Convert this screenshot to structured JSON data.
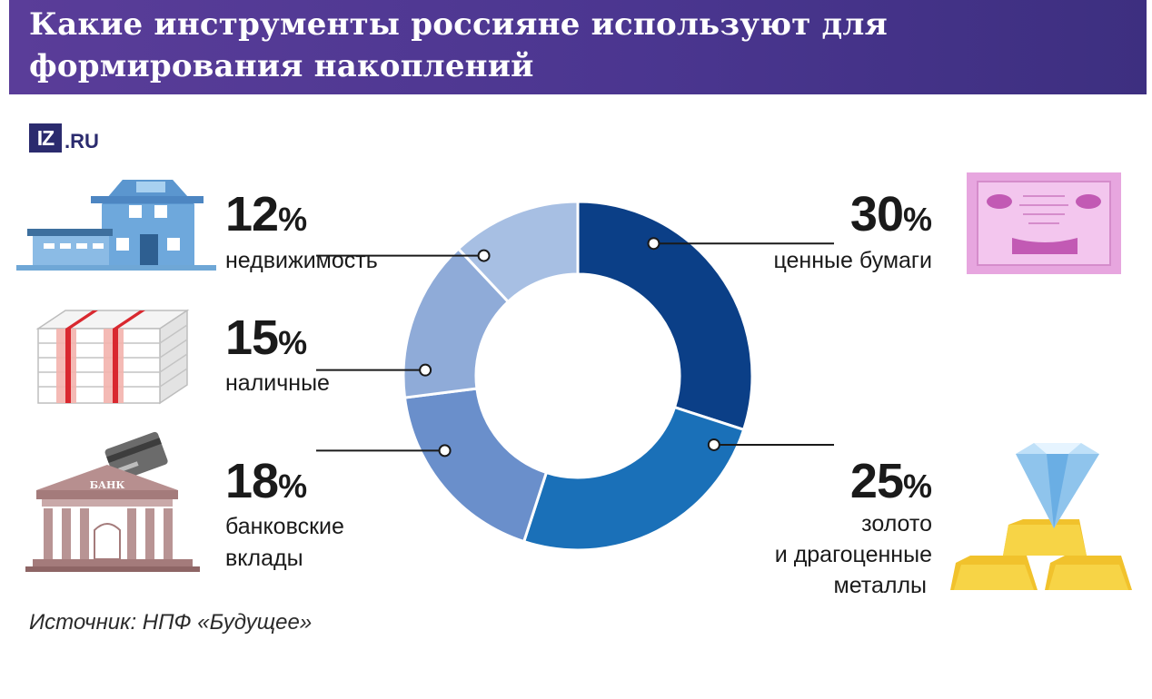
{
  "header": {
    "title": "Какие инструменты россияне используют для формирования накоплений",
    "background_color": "#4b3690"
  },
  "logo": {
    "box_text": "IZ",
    "suffix": ".RU",
    "color": "#2b2b6e"
  },
  "source": "Источник: НПФ «Будущее»",
  "chart_data": {
    "type": "pie",
    "variant": "donut",
    "unit": "%",
    "categories": [
      "ценные бумаги",
      "золото и драгоценные металлы",
      "банковские вклады",
      "наличные",
      "недвижимость"
    ],
    "values": [
      30,
      25,
      18,
      15,
      12
    ],
    "colors": [
      "#0b3f87",
      "#1a70b8",
      "#6a8fcb",
      "#8fabd8",
      "#a7bfe3"
    ],
    "value_labels": [
      "30",
      "25",
      "18",
      "15",
      "12"
    ],
    "percent_sign": "%",
    "labels": {
      "securities": "ценные бумаги",
      "gold_line1": "золото",
      "gold_line2": "и драгоценные",
      "gold_line3": "металлы",
      "deposits_line1": "банковские",
      "deposits_line2": "вклады",
      "cash": "наличные",
      "realty": "недвижимость"
    },
    "bank_sign": "БАНК"
  }
}
